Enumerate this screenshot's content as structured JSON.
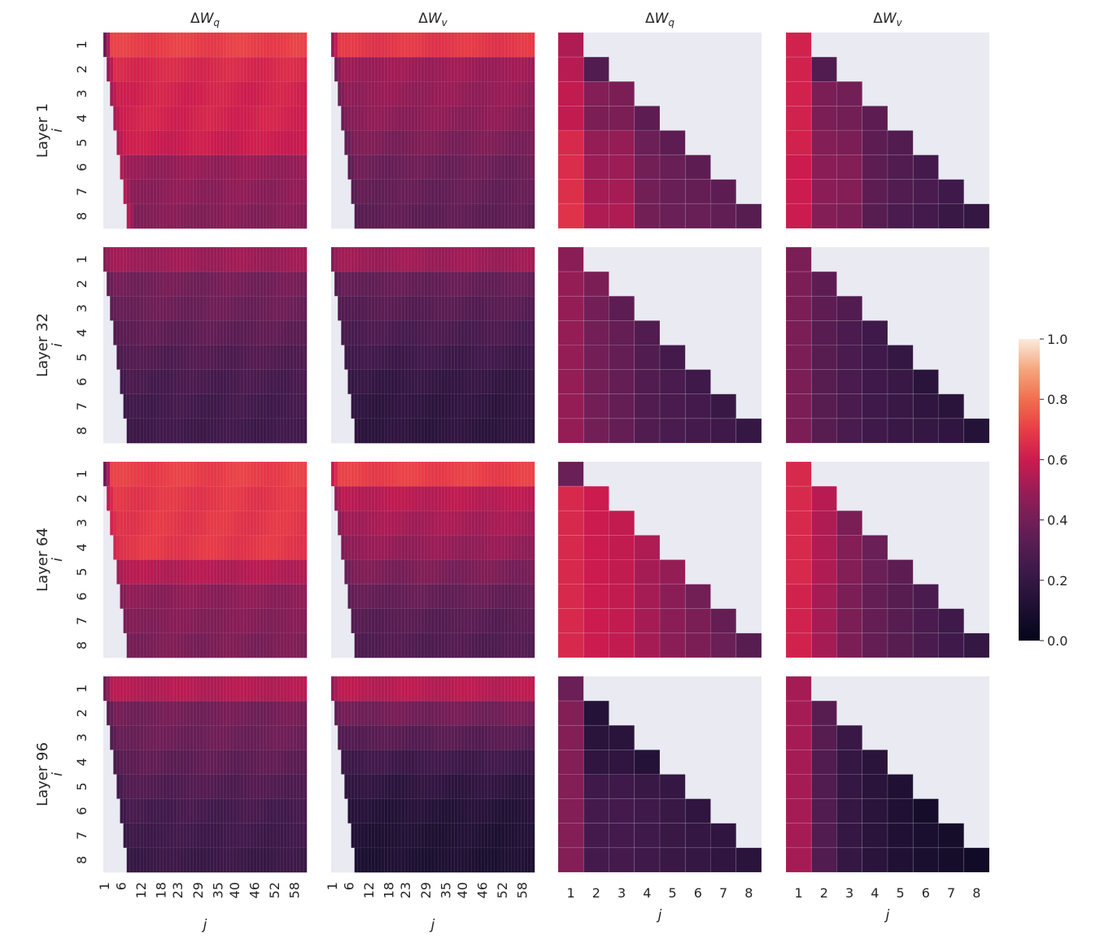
{
  "chart_data": {
    "type": "heatmap",
    "columns": [
      {
        "title_base": "ΔW",
        "title_sub": "q",
        "x_ticks": [
          "1",
          "6",
          "12",
          "18",
          "23",
          "29",
          "35",
          "40",
          "46",
          "52",
          "58"
        ],
        "x_max": 61
      },
      {
        "title_base": "ΔW",
        "title_sub": "v",
        "x_ticks": [
          "1",
          "6",
          "12",
          "18",
          "23",
          "29",
          "35",
          "40",
          "46",
          "52",
          "58"
        ],
        "x_max": 61
      },
      {
        "title_base": "ΔW",
        "title_sub": "q",
        "x_ticks": [
          "1",
          "2",
          "3",
          "4",
          "5",
          "6",
          "7",
          "8"
        ],
        "x_max": 8
      },
      {
        "title_base": "ΔW",
        "title_sub": "v",
        "x_ticks": [
          "1",
          "2",
          "3",
          "4",
          "5",
          "6",
          "7",
          "8"
        ],
        "x_max": 8
      }
    ],
    "rows": [
      {
        "label": "Layer 1"
      },
      {
        "label": "Layer 32"
      },
      {
        "label": "Layer 64"
      },
      {
        "label": "Layer 96"
      }
    ],
    "y_ticks": [
      "1",
      "2",
      "3",
      "4",
      "5",
      "6",
      "7",
      "8"
    ],
    "xlabel": "j",
    "ylabel": "i",
    "colorbar": {
      "min": 0.0,
      "max": 1.0,
      "ticks": [
        "0.0",
        "0.2",
        "0.4",
        "0.6",
        "0.8",
        "1.0"
      ],
      "colormap": "rocket"
    },
    "masked_color": "#eaeaf2",
    "wide_panels": [
      {
        "row": 0,
        "col": 0,
        "row_values": [
          0.7,
          0.64,
          0.62,
          0.62,
          0.6,
          0.48,
          0.46,
          0.44
        ],
        "ramp": [
          0.38,
          0.5,
          0.52,
          0.53,
          0.54,
          0.54,
          0.55,
          0.56
        ]
      },
      {
        "row": 0,
        "col": 1,
        "row_values": [
          0.68,
          0.5,
          0.48,
          0.46,
          0.42,
          0.38,
          0.36,
          0.34
        ],
        "ramp": [
          0.5,
          0.4,
          0.4,
          0.38,
          0.36,
          0.34,
          0.32,
          0.3
        ]
      },
      {
        "row": 1,
        "col": 0,
        "row_values": [
          0.5,
          0.4,
          0.38,
          0.34,
          0.3,
          0.27,
          0.25,
          0.24
        ],
        "ramp": [
          0.45,
          0.36,
          0.34,
          0.3,
          0.28,
          0.25,
          0.23,
          0.22
        ]
      },
      {
        "row": 1,
        "col": 1,
        "row_values": [
          0.5,
          0.36,
          0.32,
          0.28,
          0.24,
          0.2,
          0.18,
          0.17
        ],
        "ramp": [
          0.45,
          0.32,
          0.3,
          0.27,
          0.23,
          0.2,
          0.18,
          0.17
        ]
      },
      {
        "row": 2,
        "col": 0,
        "row_values": [
          0.7,
          0.68,
          0.68,
          0.68,
          0.55,
          0.46,
          0.44,
          0.42
        ],
        "ramp": [
          0.38,
          0.6,
          0.62,
          0.63,
          0.52,
          0.44,
          0.42,
          0.4
        ]
      },
      {
        "row": 2,
        "col": 1,
        "row_values": [
          0.7,
          0.56,
          0.52,
          0.48,
          0.42,
          0.36,
          0.32,
          0.3
        ],
        "ramp": [
          0.6,
          0.5,
          0.46,
          0.42,
          0.38,
          0.34,
          0.3,
          0.28
        ]
      },
      {
        "row": 3,
        "col": 0,
        "row_values": [
          0.55,
          0.4,
          0.38,
          0.34,
          0.3,
          0.26,
          0.24,
          0.22
        ],
        "ramp": [
          0.4,
          0.33,
          0.3,
          0.28,
          0.25,
          0.22,
          0.21,
          0.2
        ]
      },
      {
        "row": 3,
        "col": 1,
        "row_values": [
          0.56,
          0.4,
          0.32,
          0.24,
          0.18,
          0.14,
          0.12,
          0.11
        ],
        "ramp": [
          0.48,
          0.36,
          0.3,
          0.22,
          0.17,
          0.14,
          0.12,
          0.11
        ]
      }
    ],
    "square_panels": [
      {
        "row": 0,
        "col": 2,
        "values": [
          [
            0.54
          ],
          [
            0.56,
            0.3
          ],
          [
            0.58,
            0.44,
            0.42
          ],
          [
            0.58,
            0.42,
            0.42,
            0.34
          ],
          [
            0.64,
            0.48,
            0.48,
            0.38,
            0.34
          ],
          [
            0.65,
            0.5,
            0.5,
            0.4,
            0.37,
            0.34
          ],
          [
            0.66,
            0.52,
            0.52,
            0.4,
            0.37,
            0.36,
            0.34
          ],
          [
            0.67,
            0.54,
            0.54,
            0.4,
            0.38,
            0.37,
            0.35,
            0.32
          ]
        ]
      },
      {
        "row": 0,
        "col": 3,
        "values": [
          [
            0.62
          ],
          [
            0.62,
            0.3
          ],
          [
            0.62,
            0.42,
            0.4
          ],
          [
            0.62,
            0.42,
            0.4,
            0.34
          ],
          [
            0.62,
            0.44,
            0.42,
            0.34,
            0.3
          ],
          [
            0.6,
            0.46,
            0.44,
            0.34,
            0.3,
            0.26
          ],
          [
            0.6,
            0.46,
            0.44,
            0.34,
            0.3,
            0.28,
            0.24
          ],
          [
            0.6,
            0.44,
            0.42,
            0.32,
            0.28,
            0.26,
            0.22,
            0.2
          ]
        ]
      },
      {
        "row": 1,
        "col": 2,
        "values": [
          [
            0.46
          ],
          [
            0.48,
            0.42
          ],
          [
            0.48,
            0.4,
            0.34
          ],
          [
            0.48,
            0.4,
            0.36,
            0.3
          ],
          [
            0.48,
            0.4,
            0.36,
            0.3,
            0.26
          ],
          [
            0.48,
            0.4,
            0.36,
            0.3,
            0.28,
            0.24
          ],
          [
            0.48,
            0.4,
            0.36,
            0.3,
            0.28,
            0.26,
            0.22
          ],
          [
            0.48,
            0.4,
            0.36,
            0.3,
            0.28,
            0.26,
            0.24,
            0.2
          ]
        ]
      },
      {
        "row": 1,
        "col": 3,
        "values": [
          [
            0.42
          ],
          [
            0.42,
            0.34
          ],
          [
            0.42,
            0.34,
            0.3
          ],
          [
            0.42,
            0.32,
            0.28,
            0.24
          ],
          [
            0.42,
            0.32,
            0.28,
            0.24,
            0.2
          ],
          [
            0.42,
            0.32,
            0.28,
            0.24,
            0.22,
            0.16
          ],
          [
            0.42,
            0.32,
            0.28,
            0.24,
            0.22,
            0.18,
            0.16
          ],
          [
            0.42,
            0.32,
            0.28,
            0.24,
            0.22,
            0.2,
            0.18,
            0.14
          ]
        ]
      },
      {
        "row": 2,
        "col": 2,
        "values": [
          [
            0.38
          ],
          [
            0.64,
            0.6
          ],
          [
            0.64,
            0.6,
            0.58
          ],
          [
            0.64,
            0.6,
            0.58,
            0.54
          ],
          [
            0.64,
            0.6,
            0.58,
            0.52,
            0.48
          ],
          [
            0.64,
            0.6,
            0.58,
            0.52,
            0.46,
            0.4
          ],
          [
            0.64,
            0.6,
            0.58,
            0.52,
            0.46,
            0.42,
            0.36
          ],
          [
            0.64,
            0.6,
            0.58,
            0.52,
            0.46,
            0.42,
            0.38,
            0.32
          ]
        ]
      },
      {
        "row": 2,
        "col": 3,
        "values": [
          [
            0.64
          ],
          [
            0.64,
            0.56
          ],
          [
            0.64,
            0.54,
            0.42
          ],
          [
            0.64,
            0.54,
            0.44,
            0.38
          ],
          [
            0.64,
            0.54,
            0.44,
            0.38,
            0.34
          ],
          [
            0.62,
            0.52,
            0.42,
            0.36,
            0.32,
            0.28
          ],
          [
            0.62,
            0.52,
            0.42,
            0.36,
            0.32,
            0.28,
            0.24
          ],
          [
            0.62,
            0.52,
            0.42,
            0.36,
            0.32,
            0.28,
            0.24,
            0.2
          ]
        ]
      },
      {
        "row": 3,
        "col": 2,
        "values": [
          [
            0.38
          ],
          [
            0.44,
            0.14
          ],
          [
            0.44,
            0.16,
            0.16
          ],
          [
            0.44,
            0.18,
            0.18,
            0.14
          ],
          [
            0.44,
            0.24,
            0.24,
            0.22,
            0.2
          ],
          [
            0.44,
            0.26,
            0.26,
            0.24,
            0.22,
            0.18
          ],
          [
            0.44,
            0.26,
            0.26,
            0.24,
            0.22,
            0.2,
            0.18
          ],
          [
            0.44,
            0.26,
            0.26,
            0.24,
            0.22,
            0.2,
            0.18,
            0.16
          ]
        ]
      },
      {
        "row": 3,
        "col": 3,
        "values": [
          [
            0.52
          ],
          [
            0.52,
            0.32
          ],
          [
            0.52,
            0.32,
            0.22
          ],
          [
            0.52,
            0.3,
            0.2,
            0.16
          ],
          [
            0.52,
            0.3,
            0.2,
            0.16,
            0.12
          ],
          [
            0.52,
            0.3,
            0.2,
            0.16,
            0.12,
            0.08
          ],
          [
            0.52,
            0.3,
            0.2,
            0.16,
            0.12,
            0.1,
            0.08
          ],
          [
            0.52,
            0.3,
            0.2,
            0.16,
            0.12,
            0.1,
            0.08,
            0.06
          ]
        ]
      }
    ]
  }
}
